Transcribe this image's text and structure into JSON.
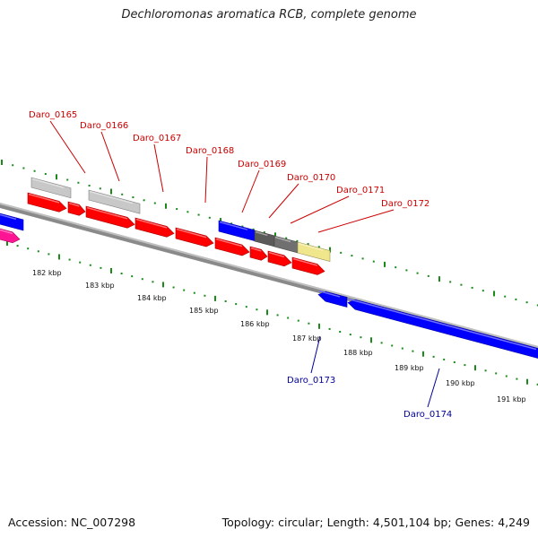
{
  "title": "Dechloromonas aromatica RCB, complete genome",
  "footer": {
    "accession": "Accession: NC_007298",
    "topology": "Topology: circular; Length: 4,501,104 bp; Genes: 4,249"
  },
  "colors": {
    "forward_gene": "#ff0000",
    "reverse_gene": "#0000ff",
    "pseudo_gene": "#c8c8c8",
    "forward_label": "#cc0000",
    "reverse_label": "#000099",
    "tick": "#1a8a1a",
    "backbone": "#808080"
  },
  "ruler": {
    "unit": "kbp",
    "labels": [
      "182 kbp",
      "183 kbp",
      "184 kbp",
      "185 kbp",
      "186 kbp",
      "187 kbp",
      "188 kbp",
      "189 kbp",
      "190 kbp",
      "191 kbp"
    ]
  },
  "gene_labels": {
    "forward": [
      "Daro_0165",
      "Daro_0166",
      "Daro_0167",
      "Daro_0168",
      "Daro_0169",
      "Daro_0170",
      "Daro_0171",
      "Daro_0172"
    ],
    "reverse": [
      "Daro_0173",
      "Daro_0174"
    ]
  }
}
